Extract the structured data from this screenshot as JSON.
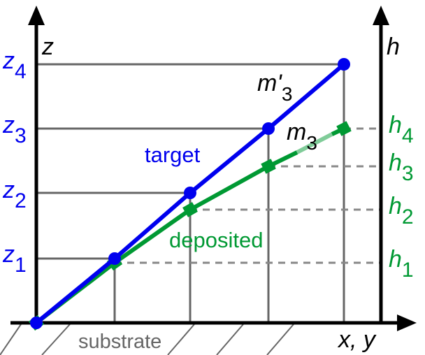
{
  "labels": {
    "z_axis": "z",
    "h_axis": "h",
    "xy_axis": "x, y",
    "substrate": "substrate",
    "target": "target",
    "deposited": "deposited",
    "m3_prime": "m'",
    "m3_prime_sub": "3",
    "m3": "m",
    "m3_sub": "3"
  },
  "z_levels": [
    {
      "base": "z",
      "sub": "1"
    },
    {
      "base": "z",
      "sub": "2"
    },
    {
      "base": "z",
      "sub": "3"
    },
    {
      "base": "z",
      "sub": "4"
    }
  ],
  "h_levels": [
    {
      "base": "h",
      "sub": "1"
    },
    {
      "base": "h",
      "sub": "2"
    },
    {
      "base": "h",
      "sub": "3"
    },
    {
      "base": "h",
      "sub": "4"
    }
  ],
  "colors": {
    "target": "#0000ee",
    "deposited": "#009933",
    "deposited_faded": "#80cc99",
    "grid": "#666666"
  }
}
